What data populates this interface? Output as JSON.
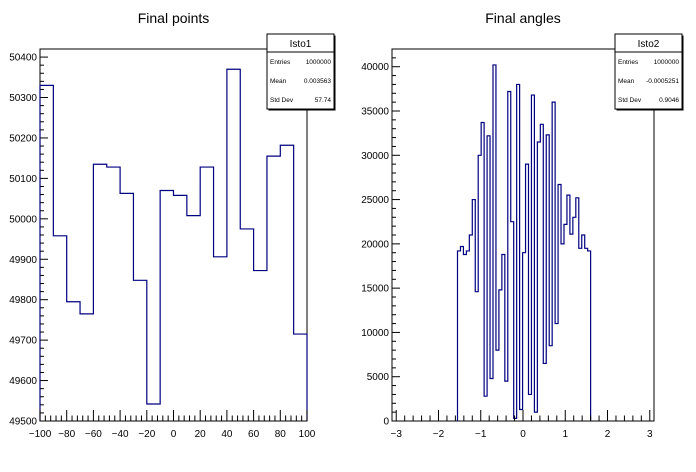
{
  "chart_data": [
    {
      "type": "bar",
      "title": "Final points",
      "xlabel": "",
      "ylabel": "",
      "xlim": [
        -100,
        100
      ],
      "ylim": [
        49500,
        50420
      ],
      "x_ticks": [
        -100,
        -80,
        -60,
        -40,
        -20,
        0,
        20,
        40,
        60,
        80,
        100
      ],
      "x_tick_labels": [
        "−100",
        "−80",
        "−60",
        "−40",
        "−20",
        "0",
        "20",
        "40",
        "60",
        "80",
        "100"
      ],
      "y_ticks": [
        49500,
        49600,
        49700,
        49800,
        49900,
        50000,
        50100,
        50200,
        50300,
        50400
      ],
      "y_tick_labels": [
        "49500",
        "49600",
        "49700",
        "49800",
        "49900",
        "50000",
        "50100",
        "50200",
        "50300",
        "50400"
      ],
      "bin_edges": [
        -100,
        -90,
        -80,
        -70,
        -60,
        -50,
        -40,
        -30,
        -20,
        -10,
        0,
        10,
        20,
        30,
        40,
        50,
        60,
        70,
        80,
        90,
        100
      ],
      "values": [
        50330,
        49958,
        49795,
        49765,
        50135,
        50128,
        50063,
        49848,
        49542,
        50070,
        50058,
        50008,
        50128,
        49906,
        50370,
        49975,
        49872,
        50155,
        50182,
        49715
      ],
      "color": "#000080",
      "stats": {
        "name": "Isto1",
        "rows": [
          {
            "label": "Entries",
            "value": "1000000"
          },
          {
            "label": "Mean",
            "value": "0.003563"
          },
          {
            "label": "Std Dev",
            "value": "57.74"
          }
        ]
      }
    },
    {
      "type": "bar",
      "title": "Final angles",
      "xlabel": "",
      "ylabel": "",
      "xlim": [
        -3.1,
        3.1
      ],
      "ylim": [
        0,
        42000
      ],
      "x_ticks": [
        -3,
        -2,
        -1,
        0,
        1,
        2,
        3
      ],
      "x_tick_labels": [
        "−3",
        "−2",
        "−1",
        "0",
        "1",
        "2",
        "3"
      ],
      "y_ticks": [
        0,
        5000,
        10000,
        15000,
        20000,
        25000,
        30000,
        35000,
        40000
      ],
      "y_tick_labels": [
        "0",
        "5000",
        "10000",
        "15000",
        "20000",
        "25000",
        "30000",
        "35000",
        "40000"
      ],
      "bin_edges": [
        -1.55,
        -1.48,
        -1.41,
        -1.34,
        -1.27,
        -1.2,
        -1.13,
        -1.06,
        -0.99,
        -0.92,
        -0.85,
        -0.78,
        -0.71,
        -0.64,
        -0.57,
        -0.5,
        -0.43,
        -0.36,
        -0.29,
        -0.22,
        -0.15,
        -0.08,
        -0.01,
        0.06,
        0.13,
        0.2,
        0.27,
        0.34,
        0.41,
        0.48,
        0.55,
        0.62,
        0.69,
        0.76,
        0.83,
        0.9,
        0.97,
        1.04,
        1.11,
        1.18,
        1.25,
        1.32,
        1.39,
        1.46,
        1.53,
        1.6
      ],
      "values": [
        19200,
        19700,
        18800,
        19200,
        21000,
        25000,
        14600,
        30000,
        33700,
        2800,
        32200,
        4800,
        40200,
        8000,
        14800,
        18800,
        4500,
        37200,
        22500,
        300,
        38000,
        1300,
        19000,
        29000,
        3000,
        36800,
        1000,
        31500,
        33500,
        6500,
        32300,
        8500,
        36000,
        11000,
        26700,
        20000,
        22200,
        25500,
        21100,
        23000,
        25200,
        19500,
        21000,
        19500,
        19200
      ],
      "color": "#000080",
      "stats": {
        "name": "Isto2",
        "rows": [
          {
            "label": "Entries",
            "value": "1000000"
          },
          {
            "label": "Mean",
            "value": "-0.0005251"
          },
          {
            "label": "Std Dev",
            "value": "0.9046"
          }
        ]
      }
    }
  ]
}
